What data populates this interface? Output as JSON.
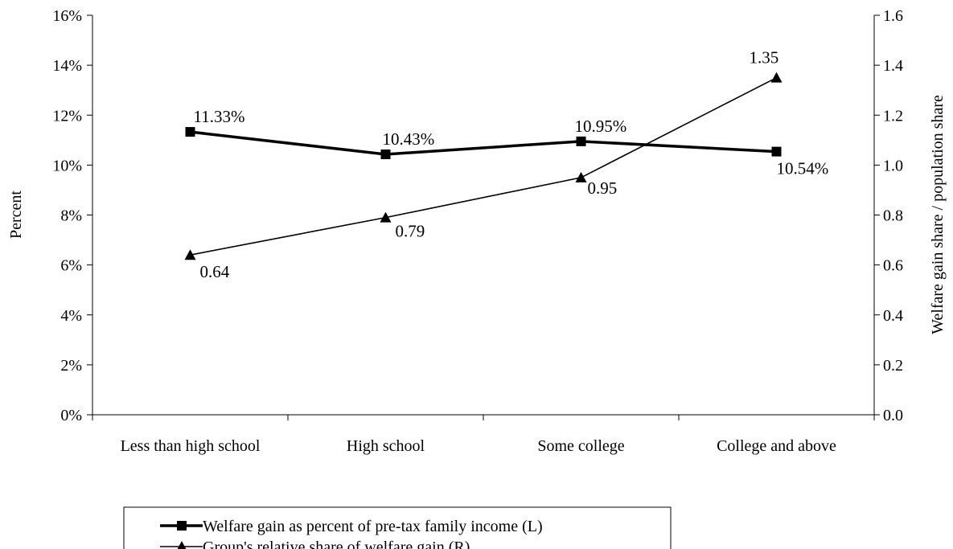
{
  "chart_data": {
    "type": "line",
    "categories": [
      "Less than high school",
      "High school",
      "Some college",
      "College and above"
    ],
    "ylabel_left": "Percent",
    "ylabel_right": "Welfare gain share / population share",
    "ylim_left": [
      0,
      16
    ],
    "ylim_right": [
      0.0,
      1.6
    ],
    "yticks_left": [
      "0%",
      "2%",
      "4%",
      "6%",
      "8%",
      "10%",
      "12%",
      "14%",
      "16%"
    ],
    "yticks_right": [
      "0.0",
      "0.2",
      "0.4",
      "0.6",
      "0.8",
      "1.0",
      "1.2",
      "1.4",
      "1.6"
    ],
    "grid": false,
    "legend_position": "bottom",
    "series": [
      {
        "name": "Welfare gain as percent of pre-tax family income (L)",
        "axis": "left",
        "marker": "square",
        "values": [
          11.33,
          10.43,
          10.95,
          10.54
        ],
        "labels": [
          "11.33%",
          "10.43%",
          "10.95%",
          "10.54%"
        ],
        "color": "#000000"
      },
      {
        "name": "Group's relative share of welfare gain (R)",
        "axis": "right",
        "marker": "triangle",
        "values": [
          0.64,
          0.79,
          0.95,
          1.35
        ],
        "labels": [
          "0.64",
          "0.79",
          "0.95",
          "1.35"
        ],
        "color": "#000000"
      }
    ]
  }
}
